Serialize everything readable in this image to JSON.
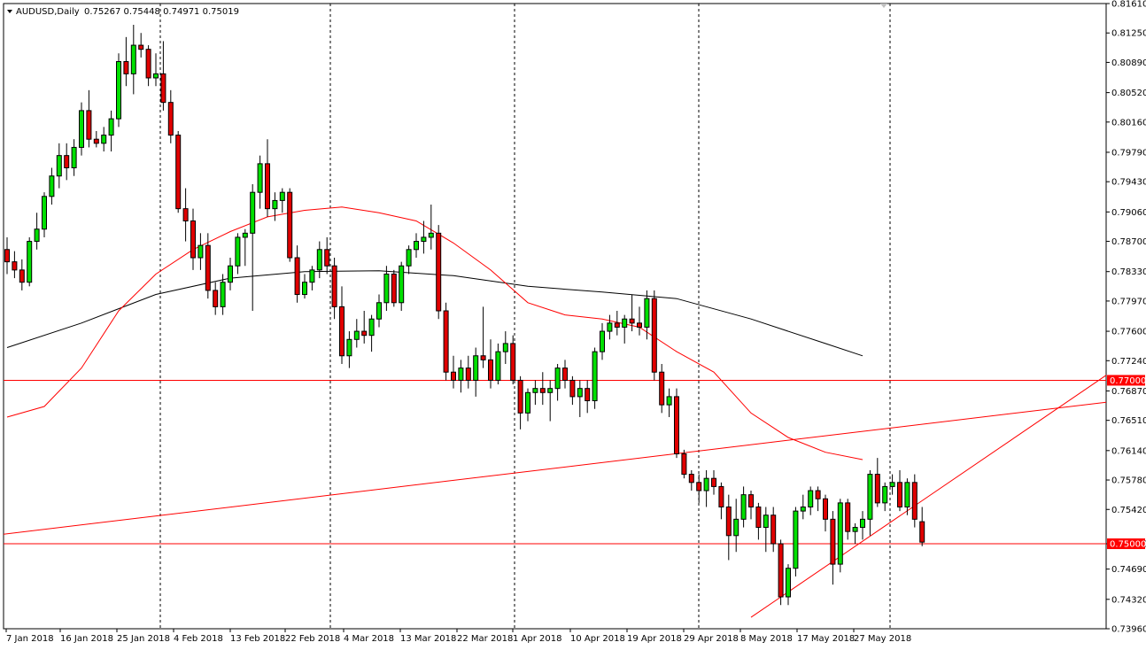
{
  "header": {
    "symbol": "AUDUSD,Daily",
    "ohlc": "0.75267 0.75448 0.74971 0.75019"
  },
  "colors": {
    "bull": "#00e000",
    "bear": "#e00000",
    "wick": "#000000",
    "ma_fast": "#ff0000",
    "ma_slow": "#000000",
    "level_line": "#ff0000",
    "tag_bg": "#ff0000"
  },
  "chart_data": {
    "type": "candlestick",
    "y_range": [
      0.7396,
      0.8161
    ],
    "y_ticks": [
      "0.81610",
      "0.81250",
      "0.80890",
      "0.80520",
      "0.80160",
      "0.79790",
      "0.79430",
      "0.79060",
      "0.78700",
      "0.78330",
      "0.77970",
      "0.77600",
      "0.77240",
      "0.76870",
      "0.76510",
      "0.76140",
      "0.75780",
      "0.75420",
      "0.75000",
      "0.74690",
      "0.74320",
      "0.73960"
    ],
    "x_labels": [
      "7 Jan 2018",
      "16 Jan 2018",
      "25 Jan 2018",
      "4 Feb 2018",
      "13 Feb 2018",
      "22 Feb 2018",
      "4 Mar 2018",
      "13 Mar 2018",
      "22 Mar 2018",
      "1 Apr 2018",
      "10 Apr 2018",
      "19 Apr 2018",
      "29 Apr 2018",
      "8 May 2018",
      "17 May 2018",
      "27 May 2018"
    ],
    "levels": [
      {
        "value": 0.77,
        "label": "0.77000"
      },
      {
        "value": 0.75,
        "label": "0.75000"
      }
    ],
    "candles": [
      [
        0.786,
        0.7875,
        0.783,
        0.7845
      ],
      [
        0.7845,
        0.7858,
        0.7825,
        0.7835
      ],
      [
        0.7835,
        0.7848,
        0.781,
        0.782
      ],
      [
        0.782,
        0.7875,
        0.7815,
        0.787
      ],
      [
        0.787,
        0.7905,
        0.786,
        0.7885
      ],
      [
        0.7885,
        0.793,
        0.7875,
        0.7925
      ],
      [
        0.7925,
        0.796,
        0.7915,
        0.795
      ],
      [
        0.795,
        0.799,
        0.7935,
        0.7975
      ],
      [
        0.7975,
        0.799,
        0.7945,
        0.796
      ],
      [
        0.796,
        0.7995,
        0.795,
        0.7985
      ],
      [
        0.7985,
        0.804,
        0.7975,
        0.803
      ],
      [
        0.803,
        0.8055,
        0.7985,
        0.7995
      ],
      [
        0.7995,
        0.8005,
        0.7985,
        0.799
      ],
      [
        0.799,
        0.801,
        0.798,
        0.8
      ],
      [
        0.8,
        0.803,
        0.798,
        0.802
      ],
      [
        0.802,
        0.81,
        0.801,
        0.809
      ],
      [
        0.809,
        0.812,
        0.806,
        0.8075
      ],
      [
        0.8075,
        0.8135,
        0.805,
        0.811
      ],
      [
        0.811,
        0.8125,
        0.8095,
        0.8105
      ],
      [
        0.8105,
        0.811,
        0.806,
        0.807
      ],
      [
        0.807,
        0.81,
        0.806,
        0.8075
      ],
      [
        0.8075,
        0.8115,
        0.803,
        0.804
      ],
      [
        0.804,
        0.8055,
        0.799,
        0.8
      ],
      [
        0.8,
        0.8005,
        0.7905,
        0.791
      ],
      [
        0.791,
        0.7935,
        0.787,
        0.7895
      ],
      [
        0.7895,
        0.791,
        0.7835,
        0.785
      ],
      [
        0.785,
        0.788,
        0.7835,
        0.7865
      ],
      [
        0.7865,
        0.788,
        0.78,
        0.781
      ],
      [
        0.781,
        0.782,
        0.778,
        0.779
      ],
      [
        0.779,
        0.783,
        0.778,
        0.782
      ],
      [
        0.782,
        0.785,
        0.781,
        0.784
      ],
      [
        0.784,
        0.788,
        0.783,
        0.7875
      ],
      [
        0.7875,
        0.7885,
        0.784,
        0.788
      ],
      [
        0.788,
        0.794,
        0.7785,
        0.793
      ],
      [
        0.793,
        0.7975,
        0.791,
        0.7965
      ],
      [
        0.7965,
        0.7995,
        0.79,
        0.791
      ],
      [
        0.791,
        0.793,
        0.7895,
        0.792
      ],
      [
        0.792,
        0.7935,
        0.7905,
        0.793
      ],
      [
        0.793,
        0.7935,
        0.7845,
        0.785
      ],
      [
        0.785,
        0.7865,
        0.7795,
        0.7805
      ],
      [
        0.7805,
        0.783,
        0.78,
        0.782
      ],
      [
        0.782,
        0.784,
        0.781,
        0.7835
      ],
      [
        0.7835,
        0.787,
        0.7825,
        0.786
      ],
      [
        0.786,
        0.7875,
        0.783,
        0.784
      ],
      [
        0.784,
        0.785,
        0.7775,
        0.779
      ],
      [
        0.779,
        0.7815,
        0.772,
        0.773
      ],
      [
        0.773,
        0.776,
        0.7715,
        0.775
      ],
      [
        0.775,
        0.7775,
        0.774,
        0.776
      ],
      [
        0.776,
        0.7785,
        0.7745,
        0.7755
      ],
      [
        0.7755,
        0.778,
        0.7735,
        0.7775
      ],
      [
        0.7775,
        0.7805,
        0.7765,
        0.7795
      ],
      [
        0.7795,
        0.784,
        0.7785,
        0.783
      ],
      [
        0.783,
        0.7835,
        0.779,
        0.7795
      ],
      [
        0.7795,
        0.7845,
        0.7785,
        0.784
      ],
      [
        0.784,
        0.7865,
        0.783,
        0.786
      ],
      [
        0.786,
        0.788,
        0.785,
        0.787
      ],
      [
        0.787,
        0.7895,
        0.7855,
        0.7875
      ],
      [
        0.7875,
        0.7915,
        0.786,
        0.788
      ],
      [
        0.788,
        0.789,
        0.7775,
        0.7785
      ],
      [
        0.7785,
        0.7795,
        0.77,
        0.771
      ],
      [
        0.771,
        0.773,
        0.769,
        0.77
      ],
      [
        0.77,
        0.7725,
        0.7685,
        0.7715
      ],
      [
        0.7715,
        0.773,
        0.769,
        0.77
      ],
      [
        0.77,
        0.774,
        0.768,
        0.773
      ],
      [
        0.773,
        0.779,
        0.7715,
        0.7725
      ],
      [
        0.7725,
        0.775,
        0.769,
        0.77
      ],
      [
        0.77,
        0.7745,
        0.7695,
        0.7735
      ],
      [
        0.7735,
        0.776,
        0.772,
        0.7745
      ],
      [
        0.7745,
        0.7755,
        0.7695,
        0.77
      ],
      [
        0.77,
        0.7705,
        0.764,
        0.766
      ],
      [
        0.766,
        0.769,
        0.765,
        0.7685
      ],
      [
        0.7685,
        0.77,
        0.767,
        0.769
      ],
      [
        0.769,
        0.771,
        0.767,
        0.7685
      ],
      [
        0.7685,
        0.77,
        0.765,
        0.769
      ],
      [
        0.769,
        0.772,
        0.7675,
        0.7715
      ],
      [
        0.7715,
        0.7725,
        0.769,
        0.77
      ],
      [
        0.77,
        0.7705,
        0.767,
        0.768
      ],
      [
        0.768,
        0.77,
        0.7655,
        0.769
      ],
      [
        0.769,
        0.77,
        0.766,
        0.7675
      ],
      [
        0.7675,
        0.774,
        0.7665,
        0.7735
      ],
      [
        0.7735,
        0.777,
        0.7725,
        0.776
      ],
      [
        0.776,
        0.778,
        0.775,
        0.777
      ],
      [
        0.777,
        0.7785,
        0.7755,
        0.7765
      ],
      [
        0.7765,
        0.778,
        0.7745,
        0.7775
      ],
      [
        0.7775,
        0.7805,
        0.776,
        0.777
      ],
      [
        0.777,
        0.779,
        0.7755,
        0.7765
      ],
      [
        0.7765,
        0.781,
        0.775,
        0.78
      ],
      [
        0.78,
        0.781,
        0.77,
        0.771
      ],
      [
        0.771,
        0.772,
        0.766,
        0.767
      ],
      [
        0.767,
        0.769,
        0.7655,
        0.768
      ],
      [
        0.768,
        0.769,
        0.7605,
        0.761
      ],
      [
        0.761,
        0.7615,
        0.758,
        0.7585
      ],
      [
        0.7585,
        0.759,
        0.7565,
        0.7575
      ],
      [
        0.7575,
        0.7585,
        0.755,
        0.7565
      ],
      [
        0.7565,
        0.759,
        0.7545,
        0.758
      ],
      [
        0.758,
        0.759,
        0.756,
        0.757
      ],
      [
        0.757,
        0.7575,
        0.753,
        0.7545
      ],
      [
        0.7545,
        0.756,
        0.748,
        0.751
      ],
      [
        0.751,
        0.7555,
        0.749,
        0.753
      ],
      [
        0.753,
        0.757,
        0.752,
        0.756
      ],
      [
        0.756,
        0.7565,
        0.753,
        0.7545
      ],
      [
        0.7545,
        0.755,
        0.7505,
        0.752
      ],
      [
        0.752,
        0.7545,
        0.749,
        0.7535
      ],
      [
        0.7535,
        0.7545,
        0.749,
        0.75
      ],
      [
        0.75,
        0.7505,
        0.7425,
        0.7435
      ],
      [
        0.7435,
        0.7475,
        0.7425,
        0.747
      ],
      [
        0.747,
        0.7545,
        0.746,
        0.754
      ],
      [
        0.754,
        0.756,
        0.753,
        0.7545
      ],
      [
        0.7545,
        0.757,
        0.7535,
        0.7565
      ],
      [
        0.7565,
        0.757,
        0.754,
        0.7555
      ],
      [
        0.7555,
        0.756,
        0.7515,
        0.753
      ],
      [
        0.753,
        0.754,
        0.745,
        0.7475
      ],
      [
        0.7475,
        0.7555,
        0.7465,
        0.755
      ],
      [
        0.755,
        0.7555,
        0.7505,
        0.7515
      ],
      [
        0.7515,
        0.7525,
        0.75,
        0.752
      ],
      [
        0.752,
        0.754,
        0.7505,
        0.753
      ],
      [
        0.753,
        0.759,
        0.751,
        0.7585
      ],
      [
        0.7585,
        0.7605,
        0.7545,
        0.755
      ],
      [
        0.755,
        0.7575,
        0.754,
        0.757
      ],
      [
        0.757,
        0.7585,
        0.756,
        0.7575
      ],
      [
        0.7575,
        0.759,
        0.754,
        0.7545
      ],
      [
        0.7545,
        0.758,
        0.7535,
        0.7575
      ],
      [
        0.7575,
        0.7585,
        0.752,
        0.753
      ],
      [
        0.7527,
        0.7545,
        0.7497,
        0.7502
      ]
    ],
    "ma_fast_points": [
      [
        0,
        0.7655
      ],
      [
        5,
        0.7668
      ],
      [
        10,
        0.7715
      ],
      [
        15,
        0.7785
      ],
      [
        20,
        0.783
      ],
      [
        25,
        0.786
      ],
      [
        30,
        0.7882
      ],
      [
        35,
        0.79
      ],
      [
        40,
        0.7908
      ],
      [
        45,
        0.7912
      ],
      [
        50,
        0.7905
      ],
      [
        55,
        0.7895
      ],
      [
        60,
        0.7868
      ],
      [
        65,
        0.7835
      ],
      [
        70,
        0.7795
      ],
      [
        75,
        0.778
      ],
      [
        80,
        0.7775
      ],
      [
        85,
        0.7765
      ],
      [
        90,
        0.7735
      ],
      [
        95,
        0.771
      ],
      [
        100,
        0.766
      ],
      [
        105,
        0.763
      ],
      [
        110,
        0.7612
      ],
      [
        115,
        0.7603
      ]
    ],
    "ma_slow_points": [
      [
        0,
        0.774
      ],
      [
        10,
        0.777
      ],
      [
        20,
        0.7805
      ],
      [
        30,
        0.7825
      ],
      [
        40,
        0.7833
      ],
      [
        50,
        0.7834
      ],
      [
        60,
        0.7828
      ],
      [
        70,
        0.7815
      ],
      [
        80,
        0.7808
      ],
      [
        90,
        0.78
      ],
      [
        100,
        0.7775
      ],
      [
        110,
        0.7745
      ],
      [
        115,
        0.773
      ]
    ],
    "trendlines": [
      {
        "from": [
          -2,
          0.751
        ],
        "to": [
          154,
          0.768
        ]
      },
      {
        "from": [
          100,
          0.741
        ],
        "to": [
          154,
          0.7745
        ]
      }
    ]
  }
}
